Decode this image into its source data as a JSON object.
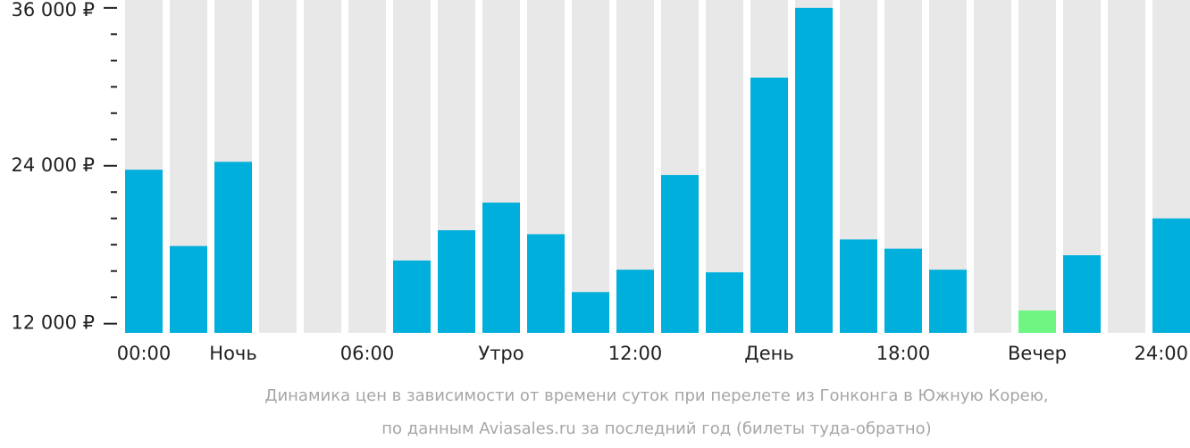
{
  "chart_data": {
    "type": "bar",
    "categories": [
      "00:00",
      null,
      "Ночь",
      null,
      null,
      "06:00",
      null,
      null,
      "Утро",
      null,
      null,
      "12:00",
      null,
      null,
      "День",
      null,
      null,
      "18:00",
      null,
      null,
      "Вечер",
      null,
      null,
      "24:00"
    ],
    "values": [
      23700,
      17900,
      24300,
      null,
      null,
      null,
      16800,
      19100,
      21200,
      18800,
      14400,
      16100,
      23300,
      15900,
      30700,
      36000,
      18400,
      17700,
      16100,
      null,
      13000,
      17200,
      null,
      20000
    ],
    "colors": [
      "#00afdb",
      "#00afdb",
      "#00afdb",
      "#00afdb",
      "#00afdb",
      "#00afdb",
      "#00afdb",
      "#00afdb",
      "#00afdb",
      "#00afdb",
      "#00afdb",
      "#00afdb",
      "#00afdb",
      "#00afdb",
      "#00afdb",
      "#00afdb",
      "#00afdb",
      "#00afdb",
      "#00afdb",
      "#00afdb",
      "#6ff581",
      "#00afdb",
      "#00afdb",
      "#00afdb"
    ],
    "background_color": "#e8e8e8",
    "ylim": [
      11300,
      36600
    ],
    "yticks": [
      {
        "value": 12000,
        "label": "12 000 ₽"
      },
      {
        "value": 24000,
        "label": "24 000 ₽"
      },
      {
        "value": 36000,
        "label": "36 000 ₽"
      }
    ],
    "minor_yticks": [
      14000,
      16000,
      18000,
      20000,
      22000,
      26000,
      28000,
      30000,
      32000,
      34000
    ],
    "caption": [
      "Динамика цен в зависимости от времени суток при перелете из Гонконга в Южную Корею,",
      "по данным Aviasales.ru за последний год (билеты туда-обратно)"
    ]
  }
}
